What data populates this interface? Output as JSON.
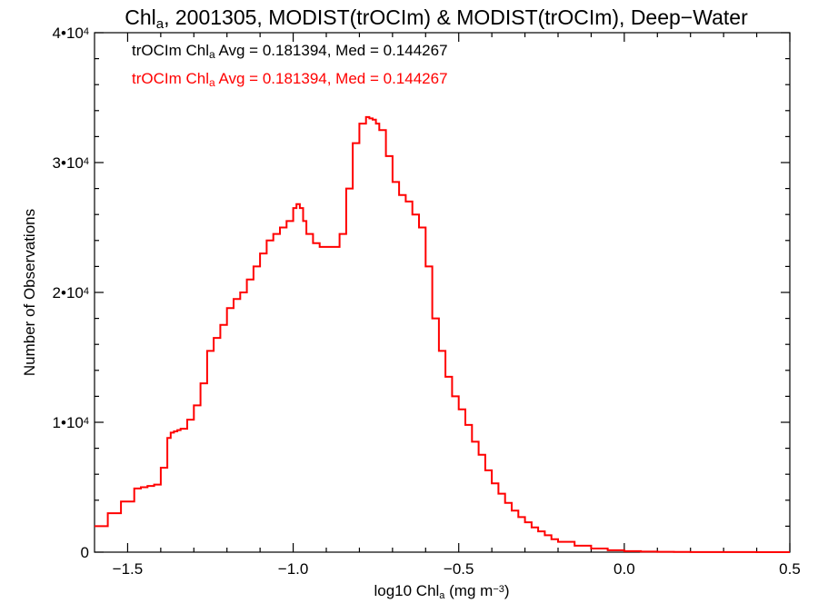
{
  "chart_data": {
    "type": "line",
    "step": true,
    "title_parts": [
      "Chl",
      "a",
      ", 2001305, MODIST(trOCIm) & MODIST(trOCIm), Deep−Water"
    ],
    "xlabel_parts": [
      "log10 Chl",
      "a",
      " (mg m",
      "−3",
      ")"
    ],
    "ylabel": "Number of Observations",
    "xlim": [
      -1.6,
      0.5
    ],
    "ylim": [
      0,
      40000
    ],
    "x_ticks": [
      {
        "value": -1.5,
        "label": "−1.5"
      },
      {
        "value": -1.0,
        "label": "−1.0"
      },
      {
        "value": -0.5,
        "label": "−0.5"
      },
      {
        "value": 0.0,
        "label": "0.0"
      },
      {
        "value": 0.5,
        "label": "0.5"
      }
    ],
    "y_ticks": [
      {
        "value": 0,
        "base": "0",
        "exp": ""
      },
      {
        "value": 10000,
        "base": "1•10",
        "exp": "4"
      },
      {
        "value": 20000,
        "base": "2•10",
        "exp": "4"
      },
      {
        "value": 30000,
        "base": "3•10",
        "exp": "4"
      },
      {
        "value": 40000,
        "base": "4•10",
        "exp": "4"
      }
    ],
    "legend": [
      {
        "parts": [
          "trOCIm Chl",
          "a",
          " Avg = 0.181394, Med = 0.144267"
        ],
        "color": "#000000"
      },
      {
        "parts": [
          "trOCIm Chl",
          "a",
          " Avg = 0.181394, Med = 0.144267"
        ],
        "color": "#ff0000"
      }
    ],
    "series": [
      {
        "color": "#ff0000",
        "x": [
          -1.6,
          -1.56,
          -1.52,
          -1.48,
          -1.46,
          -1.44,
          -1.42,
          -1.4,
          -1.38,
          -1.37,
          -1.36,
          -1.35,
          -1.34,
          -1.32,
          -1.3,
          -1.28,
          -1.26,
          -1.24,
          -1.22,
          -1.2,
          -1.18,
          -1.16,
          -1.14,
          -1.12,
          -1.1,
          -1.08,
          -1.06,
          -1.04,
          -1.02,
          -1.0,
          -0.99,
          -0.98,
          -0.97,
          -0.96,
          -0.94,
          -0.92,
          -0.9,
          -0.88,
          -0.86,
          -0.84,
          -0.82,
          -0.8,
          -0.78,
          -0.77,
          -0.76,
          -0.75,
          -0.74,
          -0.72,
          -0.7,
          -0.68,
          -0.66,
          -0.64,
          -0.62,
          -0.6,
          -0.58,
          -0.56,
          -0.54,
          -0.52,
          -0.5,
          -0.48,
          -0.46,
          -0.44,
          -0.42,
          -0.4,
          -0.38,
          -0.36,
          -0.34,
          -0.32,
          -0.3,
          -0.28,
          -0.26,
          -0.24,
          -0.22,
          -0.2,
          -0.15,
          -0.1,
          -0.05,
          0.0,
          0.05,
          0.1,
          0.15,
          0.2,
          0.3,
          0.4,
          0.5
        ],
        "y": [
          2000,
          3000,
          3900,
          4900,
          5000,
          5100,
          5200,
          6500,
          8800,
          9200,
          9300,
          9400,
          9500,
          10200,
          11300,
          13000,
          15500,
          16500,
          17500,
          18800,
          19500,
          20000,
          21000,
          22000,
          23000,
          24000,
          24500,
          25000,
          25500,
          26500,
          26800,
          26500,
          25500,
          24500,
          23800,
          23500,
          23500,
          23500,
          24500,
          28000,
          31500,
          33000,
          33500,
          33400,
          33300,
          33000,
          32500,
          30500,
          28500,
          27500,
          27000,
          26000,
          25000,
          22000,
          18000,
          15500,
          13500,
          12000,
          11000,
          9800,
          8500,
          7500,
          6300,
          5300,
          4500,
          3800,
          3200,
          2700,
          2300,
          1900,
          1600,
          1300,
          1000,
          800,
          500,
          280,
          150,
          80,
          40,
          25,
          15,
          10,
          5,
          2,
          0
        ]
      }
    ]
  }
}
